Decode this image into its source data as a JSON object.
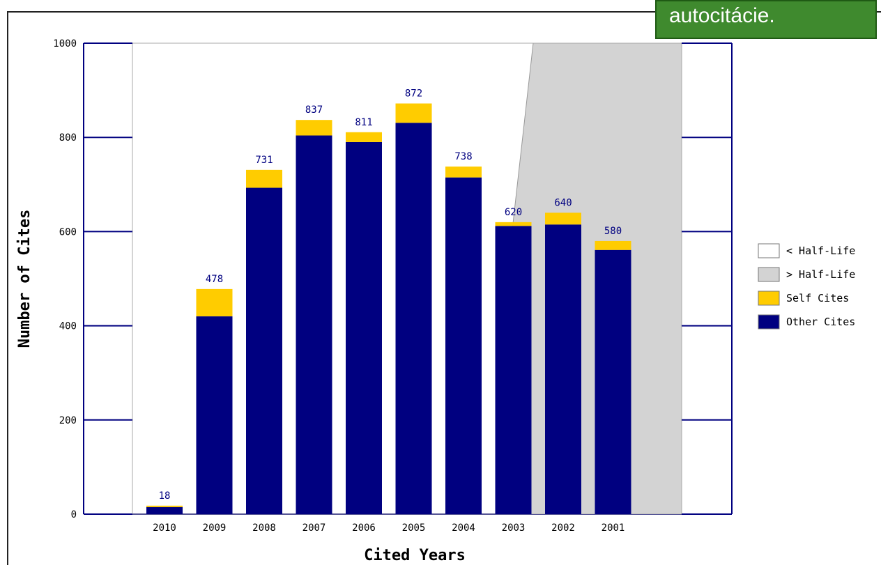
{
  "callout": {
    "text": "autocitácie."
  },
  "chart_data": {
    "type": "bar",
    "stacked": true,
    "title": "",
    "xlabel": "Cited Years",
    "ylabel": "Number of Cites",
    "ylim": [
      0,
      1000
    ],
    "yticks": [
      0,
      200,
      400,
      600,
      800,
      1000
    ],
    "categories": [
      "2010",
      "2009",
      "2008",
      "2007",
      "2006",
      "2005",
      "2004",
      "2003",
      "2002",
      "2001"
    ],
    "totals": [
      18,
      478,
      731,
      837,
      811,
      872,
      738,
      620,
      640,
      580
    ],
    "series": [
      {
        "name": "Other Cites",
        "color": "#000080",
        "values": [
          15,
          420,
          693,
          804,
          790,
          831,
          715,
          612,
          615,
          561
        ]
      },
      {
        "name": "Self Cites",
        "color": "#ffcc00",
        "values": [
          3,
          58,
          38,
          33,
          21,
          41,
          23,
          8,
          25,
          19
        ]
      }
    ],
    "legend": [
      {
        "label": "< Half-Life",
        "color": "#ffffff"
      },
      {
        "label": "> Half-Life",
        "color": "#d3d3d3"
      },
      {
        "label": "Self Cites",
        "color": "#ffcc00"
      },
      {
        "label": "Other Cites",
        "color": "#000080"
      }
    ],
    "half_life_shading": "after 2004",
    "legend_position": "right"
  }
}
